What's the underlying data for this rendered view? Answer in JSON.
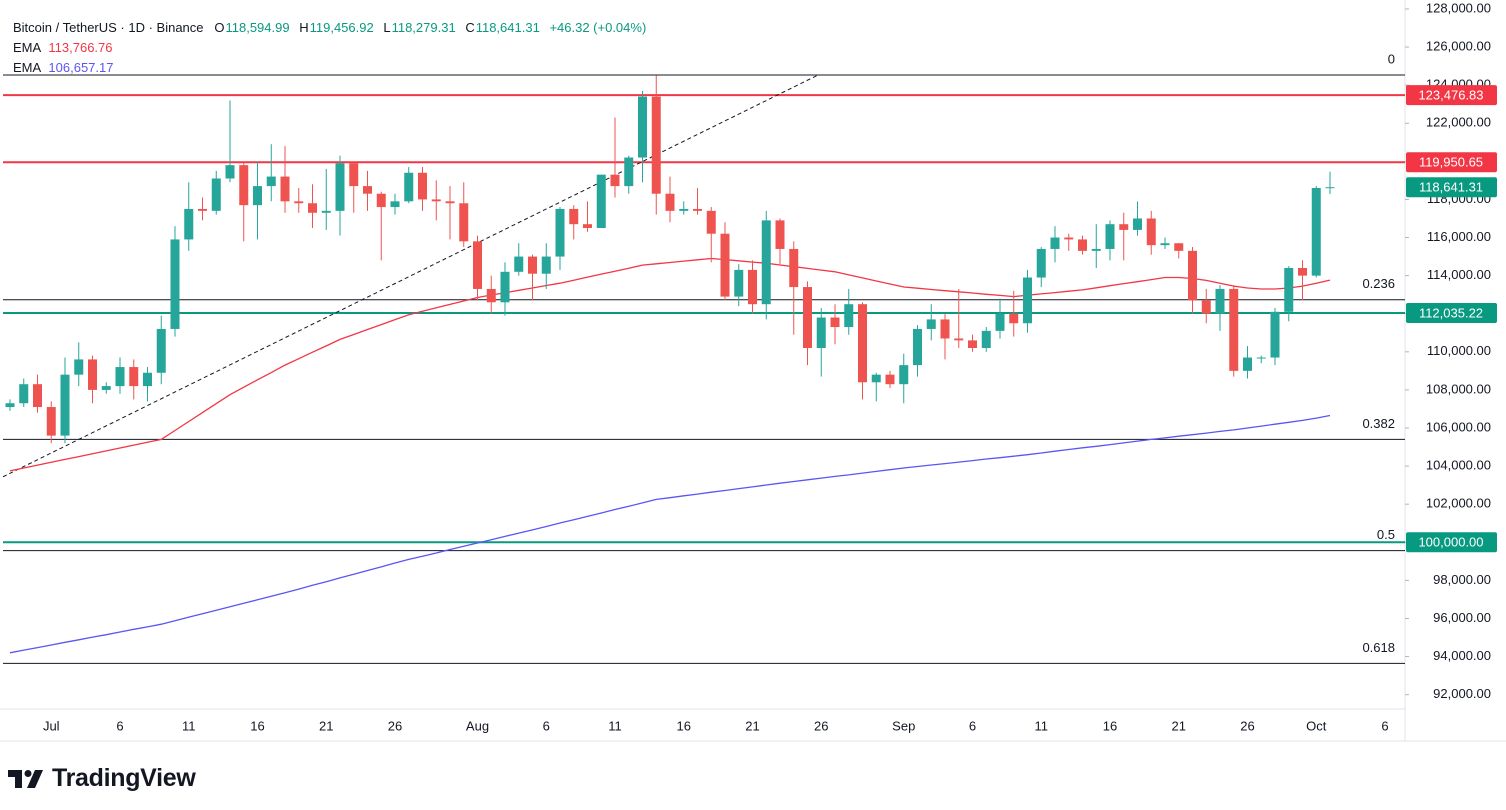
{
  "header": {
    "symbol": "Bitcoin / TetherUS · 1D · Binance",
    "open_label": "O",
    "open": "118,594.99",
    "high_label": "H",
    "high": "119,456.92",
    "low_label": "L",
    "low": "118,279.31",
    "close_label": "C",
    "close": "118,641.31",
    "change": "+46.32 (+0.04%)"
  },
  "brand": "TradingView",
  "chart_data": {
    "type": "candlestick",
    "categories": [
      null,
      null,
      null,
      "Jul",
      null,
      null,
      null,
      null,
      "6",
      null,
      null,
      null,
      null,
      "11",
      null,
      null,
      null,
      null,
      "16",
      null,
      null,
      null,
      null,
      "21",
      null,
      null,
      null,
      null,
      "26",
      null,
      null,
      null,
      null,
      null,
      "Aug",
      null,
      null,
      null,
      null,
      "6",
      null,
      null,
      null,
      null,
      "11",
      null,
      null,
      null,
      null,
      "16",
      null,
      null,
      null,
      null,
      "21",
      null,
      null,
      null,
      null,
      "26",
      null,
      null,
      null,
      null,
      null,
      "Sep",
      null,
      null,
      null,
      null,
      "6",
      null,
      null,
      null,
      null,
      "11",
      null,
      null,
      null,
      null,
      "16",
      null,
      null,
      null,
      null,
      "21",
      null,
      null,
      null,
      null,
      "26",
      null,
      null,
      null,
      null,
      "Oct",
      null,
      null,
      null,
      null,
      "6",
      null
    ],
    "open": [
      107100,
      107300,
      108300,
      107100,
      105600,
      108800,
      109600,
      108000,
      108200,
      109200,
      108200,
      108900,
      111200,
      115900,
      117500,
      117400,
      119100,
      119800,
      117700,
      118700,
      119200,
      117900,
      117800,
      117300,
      117400,
      119900,
      118700,
      118300,
      117600,
      117900,
      119400,
      118000,
      117900,
      117800,
      115800,
      113300,
      112600,
      114200,
      115000,
      114100,
      115000,
      117500,
      116700,
      116500,
      119300,
      118700,
      120200,
      123400,
      118300,
      117400,
      117500,
      117400,
      116200,
      112900,
      114300,
      112500,
      116900,
      115400,
      113400,
      110200,
      111800,
      111300,
      112500,
      108400,
      108800,
      108300,
      109300,
      111200,
      111700,
      110700,
      110600,
      110200,
      111100,
      112000,
      111500,
      113900,
      115400,
      116000,
      115900,
      115300,
      115400,
      116700,
      116400,
      117000,
      115600,
      115700,
      115300,
      112700,
      112000,
      113300,
      109000,
      109700,
      109700,
      112100,
      114400,
      114000,
      118594.99,
      null,
      null,
      null,
      null,
      null
    ],
    "high": [
      107500,
      108600,
      108800,
      107400,
      109700,
      110500,
      109800,
      108400,
      109700,
      109600,
      109200,
      111900,
      116600,
      118900,
      118100,
      119500,
      123200,
      119900,
      120000,
      120900,
      120800,
      118600,
      118800,
      119600,
      120300,
      119900,
      119500,
      118400,
      118300,
      119700,
      119700,
      119000,
      118700,
      118900,
      116100,
      114000,
      114700,
      115700,
      115100,
      115700,
      117600,
      117700,
      117900,
      119300,
      122300,
      120300,
      123700,
      124500,
      119200,
      117900,
      118600,
      117600,
      116800,
      114600,
      114800,
      117400,
      117000,
      115800,
      113700,
      112300,
      112500,
      113300,
      112600,
      108900,
      109000,
      109900,
      111400,
      112500,
      112000,
      113300,
      110900,
      111300,
      112800,
      113200,
      114300,
      115500,
      116600,
      116200,
      116100,
      116700,
      116900,
      117300,
      117900,
      117400,
      116000,
      115700,
      115500,
      113300,
      113500,
      113500,
      110300,
      109800,
      112300,
      114500,
      114800,
      118700,
      119456.92,
      null,
      null,
      null,
      null,
      null
    ],
    "low": [
      106900,
      107100,
      106800,
      105200,
      105200,
      108200,
      107300,
      107800,
      107800,
      107500,
      107400,
      108300,
      110800,
      115300,
      116900,
      117200,
      118900,
      115800,
      115900,
      117900,
      117300,
      117300,
      116500,
      116400,
      116100,
      117300,
      117400,
      114800,
      117200,
      117800,
      117400,
      116900,
      115900,
      115500,
      112700,
      112000,
      111900,
      114000,
      112700,
      113300,
      114300,
      115900,
      116300,
      116500,
      118100,
      118300,
      118900,
      117200,
      116800,
      117200,
      117200,
      114700,
      112700,
      112400,
      112000,
      111700,
      114600,
      110900,
      109300,
      108700,
      110400,
      110900,
      107500,
      107400,
      108100,
      107300,
      108700,
      110600,
      109600,
      110200,
      110000,
      110000,
      110700,
      110800,
      111000,
      113400,
      114700,
      115300,
      115100,
      114400,
      114800,
      114800,
      116100,
      115100,
      115400,
      114900,
      112000,
      111500,
      111100,
      108700,
      108600,
      109400,
      109300,
      111600,
      112700,
      113900,
      118279.31,
      null,
      null,
      null,
      null,
      null
    ],
    "close": [
      107300,
      108300,
      107100,
      105600,
      108800,
      109600,
      108000,
      108200,
      109200,
      108200,
      108900,
      111200,
      115900,
      117500,
      117400,
      119100,
      119800,
      117700,
      118700,
      119200,
      117900,
      117800,
      117300,
      117400,
      119900,
      118700,
      118300,
      117600,
      117900,
      119400,
      118000,
      117900,
      117800,
      115800,
      113300,
      112600,
      114200,
      115000,
      114100,
      115000,
      117500,
      116700,
      116500,
      119300,
      118700,
      120200,
      123400,
      118300,
      117400,
      117500,
      117400,
      116200,
      112900,
      114300,
      112500,
      116900,
      115400,
      113400,
      110200,
      111800,
      111300,
      112500,
      108400,
      108800,
      108300,
      109300,
      111200,
      111700,
      110700,
      110600,
      110200,
      111100,
      112000,
      111500,
      113900,
      115400,
      116000,
      115900,
      115300,
      115400,
      116700,
      116400,
      117000,
      115600,
      115700,
      115300,
      112700,
      112000,
      113300,
      109000,
      109700,
      109700,
      112100,
      114400,
      114000,
      118600,
      118641.31,
      null,
      null,
      null,
      null,
      null
    ],
    "up_color": "#26a69a",
    "down_color": "#ef5350",
    "lines": [
      {
        "name": "EMA",
        "value_label": "113,766.76",
        "color": "#f23645",
        "values": [
          103750,
          103900,
          104050,
          104200,
          104350,
          104500,
          104650,
          104800,
          104950,
          105100,
          105250,
          105400,
          105870,
          106340,
          106810,
          107280,
          107750,
          108140,
          108530,
          108910,
          109300,
          109640,
          109980,
          110310,
          110650,
          110910,
          111170,
          111430,
          111690,
          111950,
          112130,
          112310,
          112490,
          112670,
          112850,
          112980,
          113100,
          113230,
          113350,
          113480,
          113600,
          113760,
          113920,
          114080,
          114230,
          114390,
          114550,
          114620,
          114690,
          114760,
          114830,
          114900,
          114840,
          114780,
          114710,
          114650,
          114560,
          114470,
          114380,
          114290,
          114200,
          114040,
          113880,
          113720,
          113560,
          113400,
          113340,
          113270,
          113210,
          113150,
          113090,
          113020,
          112960,
          112900,
          112970,
          113040,
          113110,
          113180,
          113250,
          113360,
          113470,
          113580,
          113680,
          113790,
          113900,
          113900,
          113850,
          113750,
          113600,
          113450,
          113350,
          113300,
          113300,
          113350,
          113450,
          113600,
          113766.76,
          null,
          null,
          null,
          null,
          null
        ]
      },
      {
        "name": "EMA",
        "value_label": "106,657.17",
        "color": "#5b55f5",
        "values": [
          94200,
          94340,
          94470,
          94610,
          94750,
          94880,
          95020,
          95150,
          95290,
          95430,
          95560,
          95700,
          95880,
          96070,
          96250,
          96430,
          96620,
          96800,
          96980,
          97170,
          97350,
          97540,
          97740,
          97930,
          98130,
          98320,
          98520,
          98710,
          98910,
          99100,
          99270,
          99440,
          99620,
          99790,
          99960,
          100130,
          100310,
          100480,
          100650,
          100830,
          101010,
          101180,
          101360,
          101540,
          101720,
          101890,
          102070,
          102250,
          102340,
          102440,
          102530,
          102630,
          102720,
          102820,
          102910,
          103010,
          103100,
          103190,
          103280,
          103370,
          103460,
          103540,
          103630,
          103720,
          103810,
          103900,
          103980,
          104060,
          104130,
          104210,
          104290,
          104370,
          104440,
          104520,
          104600,
          104690,
          104780,
          104870,
          104960,
          105040,
          105130,
          105220,
          105310,
          105400,
          105480,
          105570,
          105650,
          105730,
          105820,
          105900,
          106000,
          106100,
          106200,
          106300,
          106400,
          106520,
          106657.17,
          null,
          null,
          null,
          null,
          null
        ]
      }
    ],
    "ylim": [
      91300,
      128470
    ],
    "yticks": [
      {
        "value": 128000,
        "label": "128,000.00"
      },
      {
        "value": 126000,
        "label": "126,000.00"
      },
      {
        "value": 124000,
        "label": "124,000.00"
      },
      {
        "value": 122000,
        "label": "122,000.00"
      },
      {
        "value": 120000,
        "label": "120,000.00"
      },
      {
        "value": 118000,
        "label": "118,000.00"
      },
      {
        "value": 116000,
        "label": "116,000.00"
      },
      {
        "value": 114000,
        "label": "114,000.00"
      },
      {
        "value": 112000,
        "label": "112,000.00"
      },
      {
        "value": 110000,
        "label": "110,000.00"
      },
      {
        "value": 108000,
        "label": "108,000.00"
      },
      {
        "value": 106000,
        "label": "106,000.00"
      },
      {
        "value": 104000,
        "label": "104,000.00"
      },
      {
        "value": 102000,
        "label": "102,000.00"
      },
      {
        "value": 100000,
        "label": "100,000.00"
      },
      {
        "value": 98000,
        "label": "98,000.00"
      },
      {
        "value": 96000,
        "label": "96,000.00"
      },
      {
        "value": 94000,
        "label": "94,000.00"
      },
      {
        "value": 92000,
        "label": "92,000.00"
      }
    ],
    "fib_levels": [
      {
        "level": 0,
        "price": 124530
      },
      {
        "level": 0.236,
        "price": 112730
      },
      {
        "level": 0.382,
        "price": 105400
      },
      {
        "level": 0.5,
        "price": 99560
      },
      {
        "level": 0.618,
        "price": 93640
      }
    ],
    "fib_color": "#131722",
    "price_lines": [
      {
        "value": 123476.83,
        "label": "123,476.83",
        "color": "#f23645"
      },
      {
        "value": 119950.65,
        "label": "119,950.65",
        "color": "#f23645"
      },
      {
        "value": 112035.22,
        "label": "112,035.22",
        "color": "#089981"
      },
      {
        "value": 100000,
        "label": "100,000.00",
        "color": "#089981"
      }
    ],
    "last_price": {
      "value": 118641.31,
      "label": "118,641.31",
      "color": "#089981"
    },
    "trendline": [
      103440,
      124530
    ]
  }
}
